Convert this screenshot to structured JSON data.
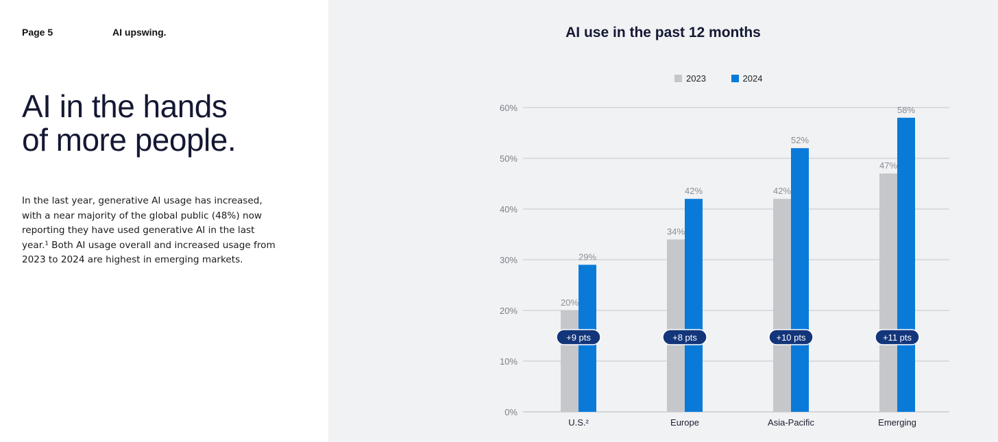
{
  "header": {
    "page_label": "Page 5",
    "section_label": "AI upswing."
  },
  "headline": {
    "line1": "AI in the hands",
    "line2": "of more people."
  },
  "body_text": "In the last year, generative AI usage has increased, with a near majority of the global public (48%) now reporting they have used generative AI in the last year.¹ Both AI usage overall and increased usage from 2023 to 2024 are highest in emerging markets.",
  "colors": {
    "series_2023": "#c6c7ca",
    "series_2024": "#0a7ad8",
    "badge": "#13357a",
    "grid": "#c4c6cb"
  },
  "chart_data": {
    "type": "bar",
    "title": "AI use in the past 12 months",
    "categories": [
      "U.S.²",
      "Europe",
      "Asia-Pacific",
      "Emerging"
    ],
    "series": [
      {
        "name": "2023",
        "values": [
          20,
          34,
          42,
          47
        ],
        "labels": [
          "20%",
          "34%",
          "42%",
          "47%"
        ]
      },
      {
        "name": "2024",
        "values": [
          29,
          42,
          52,
          58
        ],
        "labels": [
          "29%",
          "42%",
          "52%",
          "58%"
        ]
      }
    ],
    "annotations": [
      "+9 pts",
      "+8 pts",
      "+10 pts",
      "+11 pts"
    ],
    "ylim": [
      0,
      60
    ],
    "yticks": [
      "0%",
      "10%",
      "20%",
      "30%",
      "40%",
      "50%",
      "60%"
    ],
    "grid": true,
    "legend": "top-center"
  }
}
